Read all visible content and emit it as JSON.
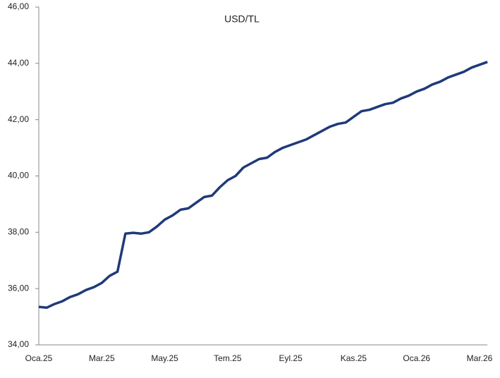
{
  "chart_data": {
    "type": "line",
    "title": "USD/TL",
    "categories": [
      "Oca.25",
      null,
      null,
      null,
      null,
      null,
      null,
      null,
      "Mar.25",
      null,
      null,
      null,
      null,
      null,
      null,
      null,
      "May.25",
      null,
      null,
      null,
      null,
      null,
      null,
      null,
      "Tem.25",
      null,
      null,
      null,
      null,
      null,
      null,
      null,
      "Eyl.25",
      null,
      null,
      null,
      null,
      null,
      null,
      null,
      "Kas.25",
      null,
      null,
      null,
      null,
      null,
      null,
      null,
      "Oca.26",
      null,
      null,
      null,
      null,
      null,
      null,
      null,
      "Mar.26",
      null
    ],
    "values": [
      35.35,
      35.32,
      35.45,
      35.55,
      35.7,
      35.8,
      35.95,
      36.05,
      36.2,
      36.45,
      36.6,
      37.95,
      37.98,
      37.95,
      38.0,
      38.2,
      38.45,
      38.6,
      38.8,
      38.85,
      39.05,
      39.25,
      39.3,
      39.6,
      39.85,
      40.0,
      40.3,
      40.45,
      40.6,
      40.65,
      40.85,
      41.0,
      41.1,
      41.2,
      41.3,
      41.45,
      41.6,
      41.75,
      41.85,
      41.9,
      42.1,
      42.3,
      42.35,
      42.45,
      42.55,
      42.6,
      42.75,
      42.85,
      43.0,
      43.1,
      43.25,
      43.35,
      43.5,
      43.6,
      43.7,
      43.85,
      43.95,
      44.05
    ],
    "color": "#1f3a7a",
    "ylim": [
      34,
      46
    ],
    "yticks": [
      {
        "value": 34,
        "label": "34,00"
      },
      {
        "value": 36,
        "label": "36,00"
      },
      {
        "value": 38,
        "label": "38,00"
      },
      {
        "value": 40,
        "label": "40,00"
      },
      {
        "value": 42,
        "label": "42,00"
      },
      {
        "value": 44,
        "label": "44,00"
      },
      {
        "value": 46,
        "label": "46,00"
      }
    ],
    "grid": false
  }
}
